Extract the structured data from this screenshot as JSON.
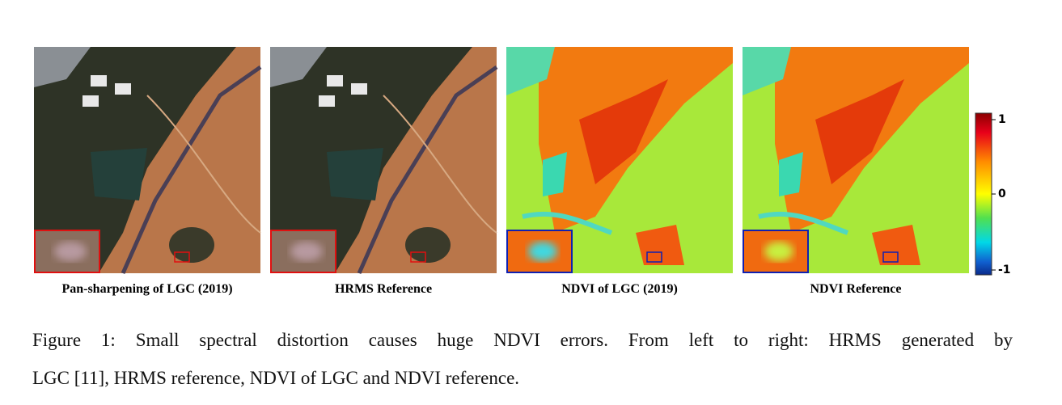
{
  "figure": {
    "panels": [
      {
        "caption": "Pan-sharpening of LGC (2019)"
      },
      {
        "caption": "HRMS Reference"
      },
      {
        "caption": "NDVI of LGC (2019)"
      },
      {
        "caption": "NDVI Reference"
      }
    ],
    "colorbar": {
      "lim": [
        -1,
        1
      ],
      "ticks": [
        1,
        0,
        -1
      ]
    },
    "caption_lines": [
      "Figure 1:  Small spectral distortion causes huge NDVI errors.  From left to right:  HRMS generated by",
      "LGC [11], HRMS reference, NDVI of LGC and NDVI reference."
    ]
  }
}
